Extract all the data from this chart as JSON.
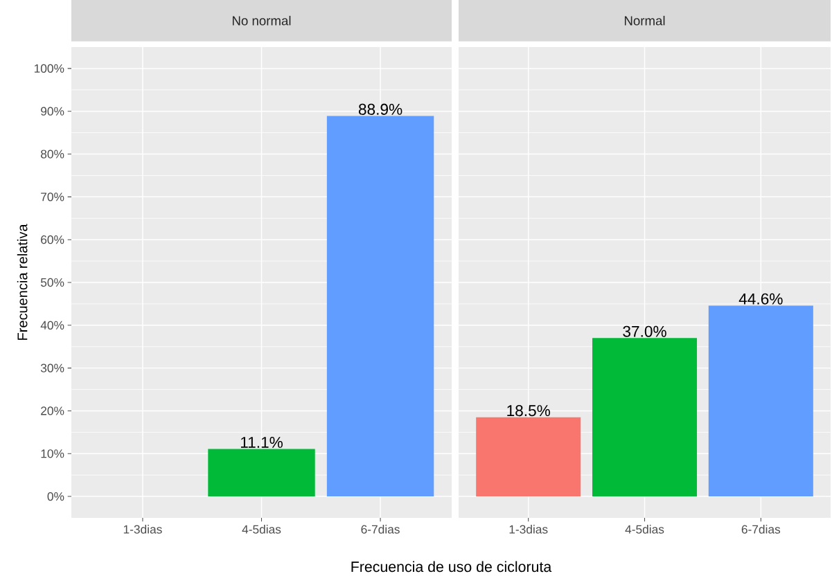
{
  "chart_data": [
    {
      "type": "bar",
      "title": "No normal",
      "categories": [
        "1-3dias",
        "4-5dias",
        "6-7dias"
      ],
      "values": [
        null,
        11.1,
        88.9
      ],
      "colors": [
        "#f8766d",
        "#00ba38",
        "#619cff"
      ],
      "value_labels": [
        null,
        "11.1%",
        "88.9%"
      ],
      "ylim": [
        -5,
        105
      ],
      "yticks": [
        {
          "value": 0,
          "label": "0%"
        },
        {
          "value": 10,
          "label": "10%"
        },
        {
          "value": 20,
          "label": "20%"
        },
        {
          "value": 30,
          "label": "30%"
        },
        {
          "value": 40,
          "label": "40%"
        },
        {
          "value": 50,
          "label": "50%"
        },
        {
          "value": 60,
          "label": "60%"
        },
        {
          "value": 70,
          "label": "70%"
        },
        {
          "value": 80,
          "label": "80%"
        },
        {
          "value": 90,
          "label": "90%"
        },
        {
          "value": 100,
          "label": "100%"
        }
      ],
      "grid": true,
      "xlabel": "Frecuencia de uso  de cicloruta",
      "ylabel": "Frecuencia relativa"
    },
    {
      "type": "bar",
      "title": "Normal",
      "categories": [
        "1-3dias",
        "4-5dias",
        "6-7dias"
      ],
      "values": [
        18.5,
        37.0,
        44.6
      ],
      "colors": [
        "#f8766d",
        "#00ba38",
        "#619cff"
      ],
      "value_labels": [
        "18.5%",
        "37.0%",
        "44.6%"
      ],
      "ylim": [
        -5,
        105
      ],
      "yticks": [
        {
          "value": 0,
          "label": null
        },
        {
          "value": 10,
          "label": null
        },
        {
          "value": 20,
          "label": null
        },
        {
          "value": 30,
          "label": null
        },
        {
          "value": 40,
          "label": null
        },
        {
          "value": 50,
          "label": null
        },
        {
          "value": 60,
          "label": null
        },
        {
          "value": 70,
          "label": null
        },
        {
          "value": 80,
          "label": null
        },
        {
          "value": 90,
          "label": null
        },
        {
          "value": 100,
          "label": null
        }
      ],
      "grid": true,
      "tick_labels": "x"
    }
  ]
}
